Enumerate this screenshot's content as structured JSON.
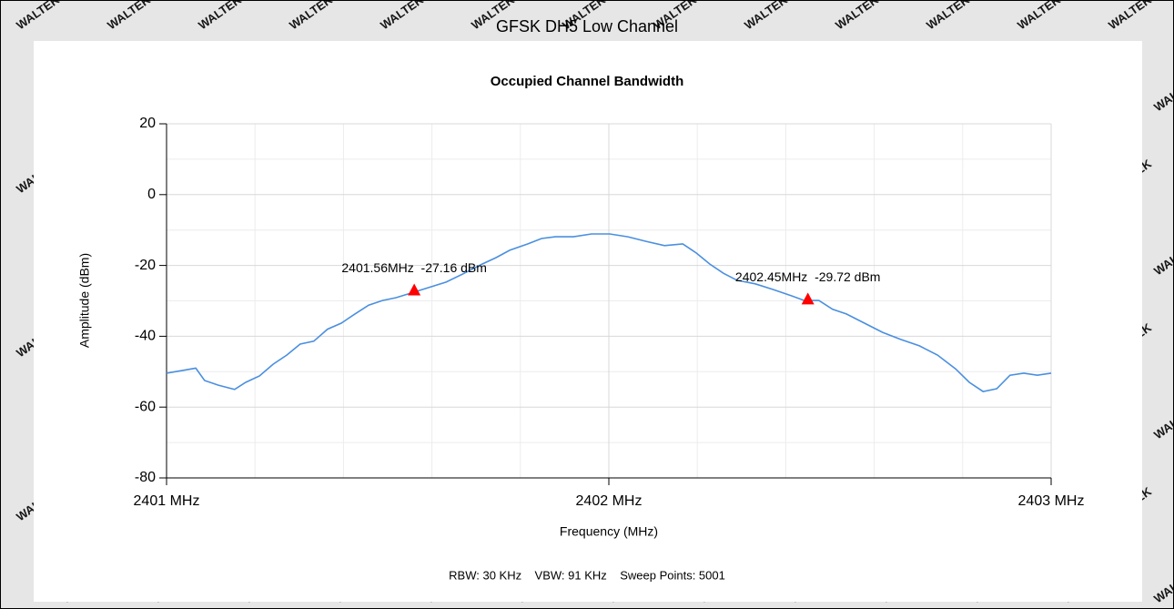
{
  "chart_data": {
    "type": "line",
    "suptitle": "GFSK DH5 Low Channel",
    "title": "Occupied Channel Bandwidth",
    "xlabel": "Frequency (MHz)",
    "ylabel": "Amplitude (dBm)",
    "footer": "RBW: 30 KHz    VBW: 91 KHz    Sweep Points: 5001",
    "watermark": "WALTEK",
    "xlim": [
      2401,
      2403
    ],
    "ylim": [
      -80,
      20
    ],
    "xticks": [
      {
        "value": 2401,
        "label": "2401 MHz"
      },
      {
        "value": 2402,
        "label": "2402 MHz"
      },
      {
        "value": 2403,
        "label": "2403 MHz"
      }
    ],
    "yticks": [
      20,
      0,
      -20,
      -40,
      -60,
      -80
    ],
    "grid": true,
    "x": [
      2401.0,
      2401.035,
      2401.066,
      2401.086,
      2401.117,
      2401.154,
      2401.179,
      2401.21,
      2401.241,
      2401.272,
      2401.302,
      2401.333,
      2401.364,
      2401.395,
      2401.426,
      2401.457,
      2401.488,
      2401.519,
      2401.553,
      2401.591,
      2401.632,
      2401.673,
      2401.714,
      2401.745,
      2401.776,
      2401.817,
      2401.848,
      2401.879,
      2401.92,
      2401.961,
      2402.002,
      2402.043,
      2402.084,
      2402.126,
      2402.167,
      2402.198,
      2402.228,
      2402.259,
      2402.29,
      2402.331,
      2402.372,
      2402.414,
      2402.442,
      2402.475,
      2402.506,
      2402.537,
      2402.578,
      2402.619,
      2402.66,
      2402.702,
      2402.743,
      2402.784,
      2402.815,
      2402.846,
      2402.877,
      2402.907,
      2402.938,
      2402.969,
      2403.0
    ],
    "series": [
      {
        "name": "Trace",
        "color": "#4a8fe0",
        "values": [
          -50.4,
          -49.7,
          -49.0,
          -52.5,
          -53.8,
          -55.0,
          -53.0,
          -51.2,
          -47.9,
          -45.3,
          -42.2,
          -41.4,
          -38.0,
          -36.3,
          -33.7,
          -31.2,
          -29.9,
          -29.1,
          -27.8,
          -26.3,
          -24.7,
          -22.2,
          -19.6,
          -17.8,
          -15.7,
          -13.9,
          -12.4,
          -11.9,
          -11.9,
          -11.1,
          -11.1,
          -11.9,
          -13.2,
          -14.4,
          -13.9,
          -16.5,
          -19.6,
          -22.2,
          -24.2,
          -25.2,
          -26.8,
          -28.6,
          -29.9,
          -29.9,
          -32.4,
          -33.7,
          -36.3,
          -38.9,
          -40.9,
          -42.7,
          -45.3,
          -49.2,
          -53.0,
          -55.6,
          -54.8,
          -51.0,
          -50.4,
          -51.0,
          -50.4
        ]
      }
    ],
    "markers": [
      {
        "x": 2401.56,
        "y": -27.16,
        "text": "2401.56MHz  -27.16 dBm",
        "color": "#ff0000"
      },
      {
        "x": 2402.45,
        "y": -29.72,
        "text": "2402.45MHz  -29.72 dBm",
        "color": "#ff0000"
      }
    ]
  }
}
